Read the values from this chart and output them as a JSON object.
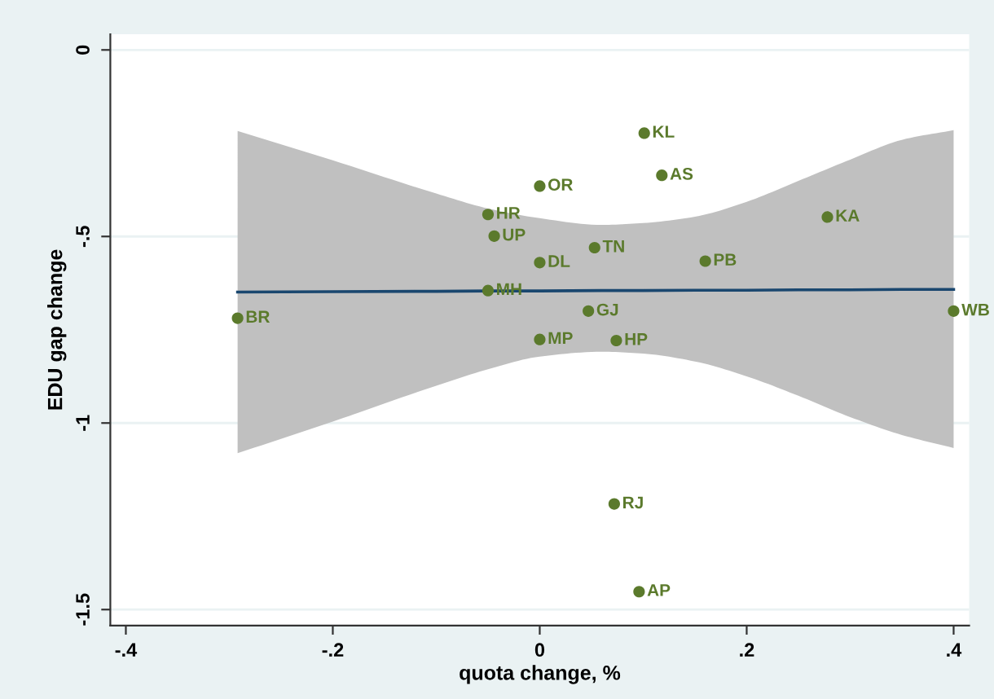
{
  "chart_data": {
    "type": "scatter",
    "xlabel": "quota change, %",
    "ylabel": "EDU gap change",
    "xlim": [
      -0.415,
      0.415
    ],
    "ylim": [
      -1.543,
      0.042
    ],
    "xticks": [
      {
        "value": -0.4,
        "label": "-.4"
      },
      {
        "value": -0.2,
        "label": "-.2"
      },
      0,
      {
        "value": 0.2,
        "label": ".2"
      },
      {
        "value": 0.4,
        "label": ".4"
      }
    ],
    "yticks": [
      0,
      {
        "value": -0.5,
        "label": "-.5"
      },
      {
        "value": -1,
        "label": "-1"
      },
      {
        "value": -1.5,
        "label": "-1.5"
      }
    ],
    "grid": "y",
    "series": [
      {
        "type": "line",
        "color": "#1a476f",
        "line_style": "solid",
        "x": [
          -0.292,
          -0.2,
          -0.1,
          -0.05,
          0,
          0.06,
          0.1,
          0.15,
          0.2,
          0.25,
          0.3,
          0.35,
          0.4
        ],
        "values": [
          -0.649,
          -0.648,
          -0.647,
          -0.646,
          -0.646,
          -0.645,
          -0.645,
          -0.644,
          -0.644,
          -0.643,
          -0.643,
          -0.642,
          -0.642
        ],
        "lower": [
          -1.081,
          -0.996,
          -0.9,
          -0.856,
          -0.822,
          -0.809,
          -0.814,
          -0.835,
          -0.875,
          -0.927,
          -0.984,
          -1.032,
          -1.067
        ],
        "upper": [
          -0.217,
          -0.296,
          -0.385,
          -0.425,
          -0.451,
          -0.469,
          -0.464,
          -0.447,
          -0.407,
          -0.351,
          -0.294,
          -0.241,
          -0.215
        ]
      },
      {
        "color": "#5b7a2c",
        "marker": "circle",
        "x": [
          0.101,
          0.118,
          0.0,
          -0.05,
          -0.044,
          -0.05,
          -0.292,
          0.278,
          0.053,
          0.0,
          0.16,
          0.047,
          0.4,
          0.0,
          0.074,
          0.072,
          0.096
        ],
        "values": [
          -0.223,
          -0.336,
          -0.365,
          -0.441,
          -0.499,
          -0.645,
          -0.719,
          -0.448,
          -0.53,
          -0.57,
          -0.566,
          -0.7,
          -0.7,
          -0.776,
          -0.779,
          -1.217,
          -1.452
        ]
      }
    ],
    "annotations": [
      {
        "text": "KL",
        "x": 0.101,
        "y": -0.223
      },
      {
        "text": "AS",
        "x": 0.118,
        "y": -0.336
      },
      {
        "text": "OR",
        "x": 0.0,
        "y": -0.365
      },
      {
        "text": "HR",
        "x": -0.05,
        "y": -0.441
      },
      {
        "text": "UP",
        "x": -0.044,
        "y": -0.499
      },
      {
        "text": "MH",
        "x": -0.05,
        "y": -0.645
      },
      {
        "text": "BR",
        "x": -0.292,
        "y": -0.719
      },
      {
        "text": "KA",
        "x": 0.278,
        "y": -0.448
      },
      {
        "text": "TN",
        "x": 0.053,
        "y": -0.53
      },
      {
        "text": "DL",
        "x": 0.0,
        "y": -0.57
      },
      {
        "text": "PB",
        "x": 0.16,
        "y": -0.566
      },
      {
        "text": "GJ",
        "x": 0.047,
        "y": -0.7
      },
      {
        "text": "WB",
        "x": 0.4,
        "y": -0.7
      },
      {
        "text": "MP",
        "x": 0.0,
        "y": -0.776
      },
      {
        "text": "HP",
        "x": 0.074,
        "y": -0.779
      },
      {
        "text": "RJ",
        "x": 0.072,
        "y": -1.217
      },
      {
        "text": "AP",
        "x": 0.096,
        "y": -1.452
      }
    ]
  }
}
